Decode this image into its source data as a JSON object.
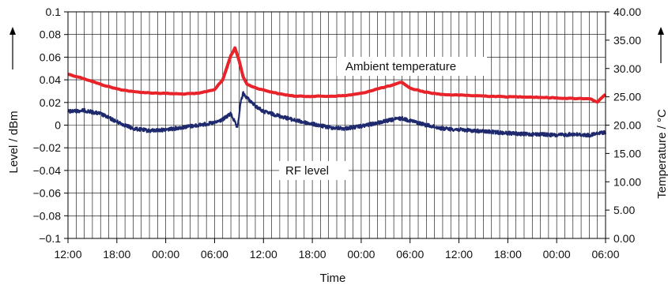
{
  "chart_data": {
    "type": "line",
    "title": "",
    "xlabel": "Time",
    "ylabel": "Level / dBm",
    "ylabel_right": "Temperature / °C",
    "x_tick_labels": [
      "12:00",
      "18:00",
      "00:00",
      "06:00",
      "12:00",
      "18:00",
      "00:00",
      "06:00",
      "12:00",
      "18:00",
      "00:00",
      "06:00"
    ],
    "x_range_hours": [
      0,
      66
    ],
    "ylim": [
      -0.1,
      0.1
    ],
    "y_ticks": [
      "0.1",
      "0.08",
      "0.06",
      "0.04",
      "0.02",
      "0",
      "−0.02",
      "−0.04",
      "−0.06",
      "−0.08",
      "−0.1"
    ],
    "ylim_right": [
      0,
      40
    ],
    "y_ticks_right": [
      "40.00",
      "35.00",
      "30.00",
      "25.00",
      "20.00",
      "15.00",
      "10.00",
      "5.00",
      "0.00"
    ],
    "grid": true,
    "annotations": [
      "Ambient temperature",
      "RF level"
    ],
    "series": [
      {
        "axis": "right",
        "color": "#e8232a",
        "x_hours": [
          0,
          2,
          4,
          6,
          8,
          10,
          12,
          14,
          16,
          18,
          19,
          20,
          20.5,
          21,
          21.5,
          22,
          23,
          24,
          26,
          28,
          30,
          32,
          34,
          36,
          38,
          40,
          41,
          42,
          44,
          46,
          48,
          50,
          52,
          54,
          56,
          58,
          60,
          62,
          64,
          65,
          66
        ],
        "values": [
          29.0,
          28.2,
          27.2,
          26.4,
          25.9,
          25.7,
          25.6,
          25.5,
          25.6,
          26.3,
          28.0,
          32.3,
          33.6,
          31.5,
          28.5,
          27.2,
          26.6,
          26.2,
          25.5,
          25.1,
          25.1,
          25.1,
          25.2,
          25.6,
          26.4,
          27.1,
          27.6,
          26.5,
          25.8,
          25.4,
          25.3,
          25.2,
          25.1,
          25.0,
          25.0,
          24.9,
          24.8,
          24.7,
          24.7,
          24.1,
          25.4
        ]
      },
      {
        "axis": "left",
        "color": "#1f2a6e",
        "x_hours": [
          0,
          2,
          4,
          6,
          8,
          10,
          12,
          14,
          16,
          18,
          19,
          20,
          20.4,
          20.8,
          21.2,
          21.5,
          22,
          23,
          24,
          26,
          28,
          30,
          32,
          34,
          36,
          38,
          40,
          41,
          42,
          44,
          46,
          48,
          50,
          52,
          54,
          56,
          58,
          60,
          62,
          64,
          66
        ],
        "values": [
          0.012,
          0.013,
          0.01,
          0.003,
          -0.003,
          -0.005,
          -0.004,
          -0.002,
          0.0,
          0.002,
          0.005,
          0.01,
          0.004,
          -0.003,
          0.02,
          0.028,
          0.024,
          0.017,
          0.012,
          0.008,
          0.004,
          0.001,
          -0.002,
          -0.003,
          -0.001,
          0.002,
          0.005,
          0.006,
          0.004,
          0.0,
          -0.003,
          -0.004,
          -0.005,
          -0.006,
          -0.007,
          -0.008,
          -0.008,
          -0.009,
          -0.008,
          -0.009,
          -0.006
        ]
      }
    ]
  }
}
